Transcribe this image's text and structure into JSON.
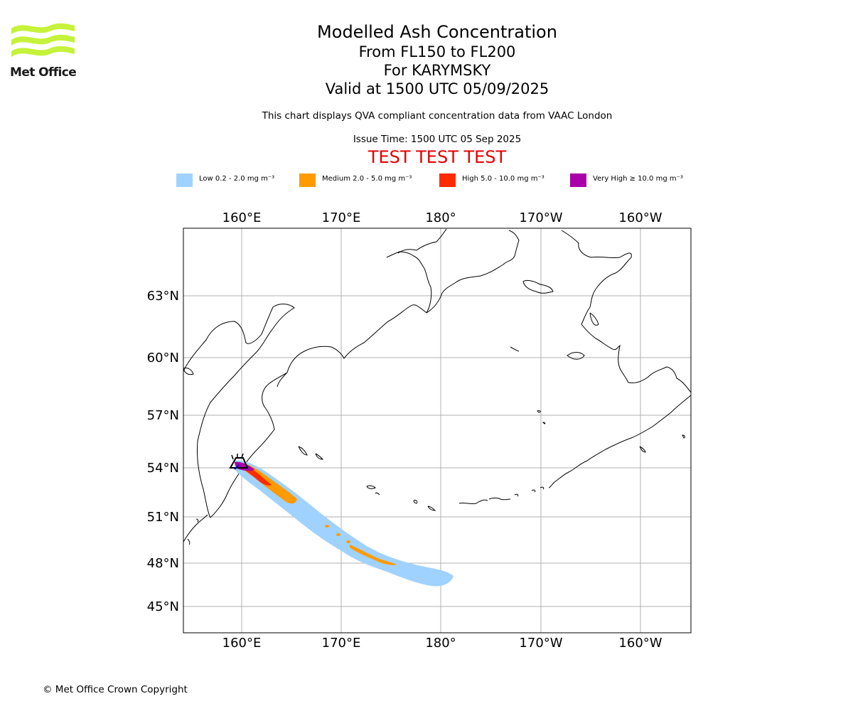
{
  "header": {
    "logo_label": "Met Office",
    "title": "Modelled Ash Concentration",
    "levels": "From FL150 to FL200",
    "volcano": "For KARYMSKY",
    "valid": "Valid at 1500 UTC 05/09/2025",
    "note": "This chart displays QVA compliant concentration data from VAAC London",
    "issue": "Issue Time: 1500 UTC 05 Sep 2025",
    "test_banner": "TEST TEST TEST"
  },
  "legend": [
    {
      "label": "Low 0.2 - 2.0 mg m⁻³",
      "color": "#a0d2ff"
    },
    {
      "label": "Medium 2.0 - 5.0 mg m⁻³",
      "color": "#ff9a00"
    },
    {
      "label": "High 5.0 - 10.0 mg m⁻³",
      "color": "#ff2a00"
    },
    {
      "label": "Very High ≥ 10.0 mg m⁻³",
      "color": "#aa00aa"
    }
  ],
  "map": {
    "lon_labels": [
      "160°E",
      "170°E",
      "180°",
      "170°W",
      "160°W"
    ],
    "lat_labels": [
      "63°N",
      "60°N",
      "57°N",
      "54°N",
      "51°N",
      "48°N",
      "45°N"
    ],
    "volcano_symbol": "volcano-triangle"
  },
  "footer": {
    "copyright": "© Met Office Crown Copyright"
  }
}
